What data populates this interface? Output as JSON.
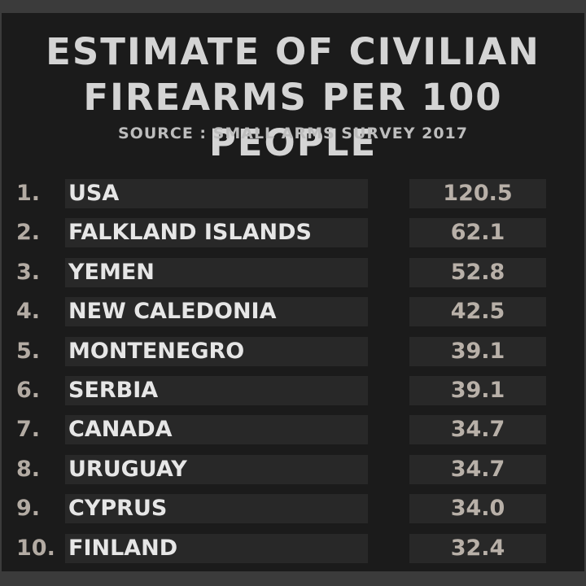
{
  "title_line1": "ESTIMATE OF CIVILIAN",
  "title_line2": "FIREARMS PER 100 PEOPLE",
  "source": "SOURCE : SMALL ARMS SURVEY 2017",
  "colors": {
    "background": "#1b1b1b",
    "row_bar": "#282828",
    "title": "#d4d4d4",
    "name_text": "#e6e6e6",
    "rank_text": "#b3aba3",
    "value_text": "#b8b0a8"
  },
  "chart_data": {
    "type": "table",
    "title": "ESTIMATE OF CIVILIAN FIREARMS PER 100 PEOPLE",
    "subtitle": "SOURCE : SMALL ARMS SURVEY 2017",
    "rows": [
      {
        "rank": "1.",
        "country": "USA",
        "value": "120.5"
      },
      {
        "rank": "2.",
        "country": "FALKLAND ISLANDS",
        "value": "62.1"
      },
      {
        "rank": "3.",
        "country": "YEMEN",
        "value": "52.8"
      },
      {
        "rank": "4.",
        "country": "NEW CALEDONIA",
        "value": "42.5"
      },
      {
        "rank": "5.",
        "country": "MONTENEGRO",
        "value": "39.1"
      },
      {
        "rank": "6.",
        "country": "SERBIA",
        "value": "39.1"
      },
      {
        "rank": "7.",
        "country": "CANADA",
        "value": "34.7"
      },
      {
        "rank": "8.",
        "country": "URUGUAY",
        "value": "34.7"
      },
      {
        "rank": "9.",
        "country": "CYPRUS",
        "value": "34.0"
      },
      {
        "rank": "10.",
        "country": "FINLAND",
        "value": "32.4"
      }
    ]
  }
}
